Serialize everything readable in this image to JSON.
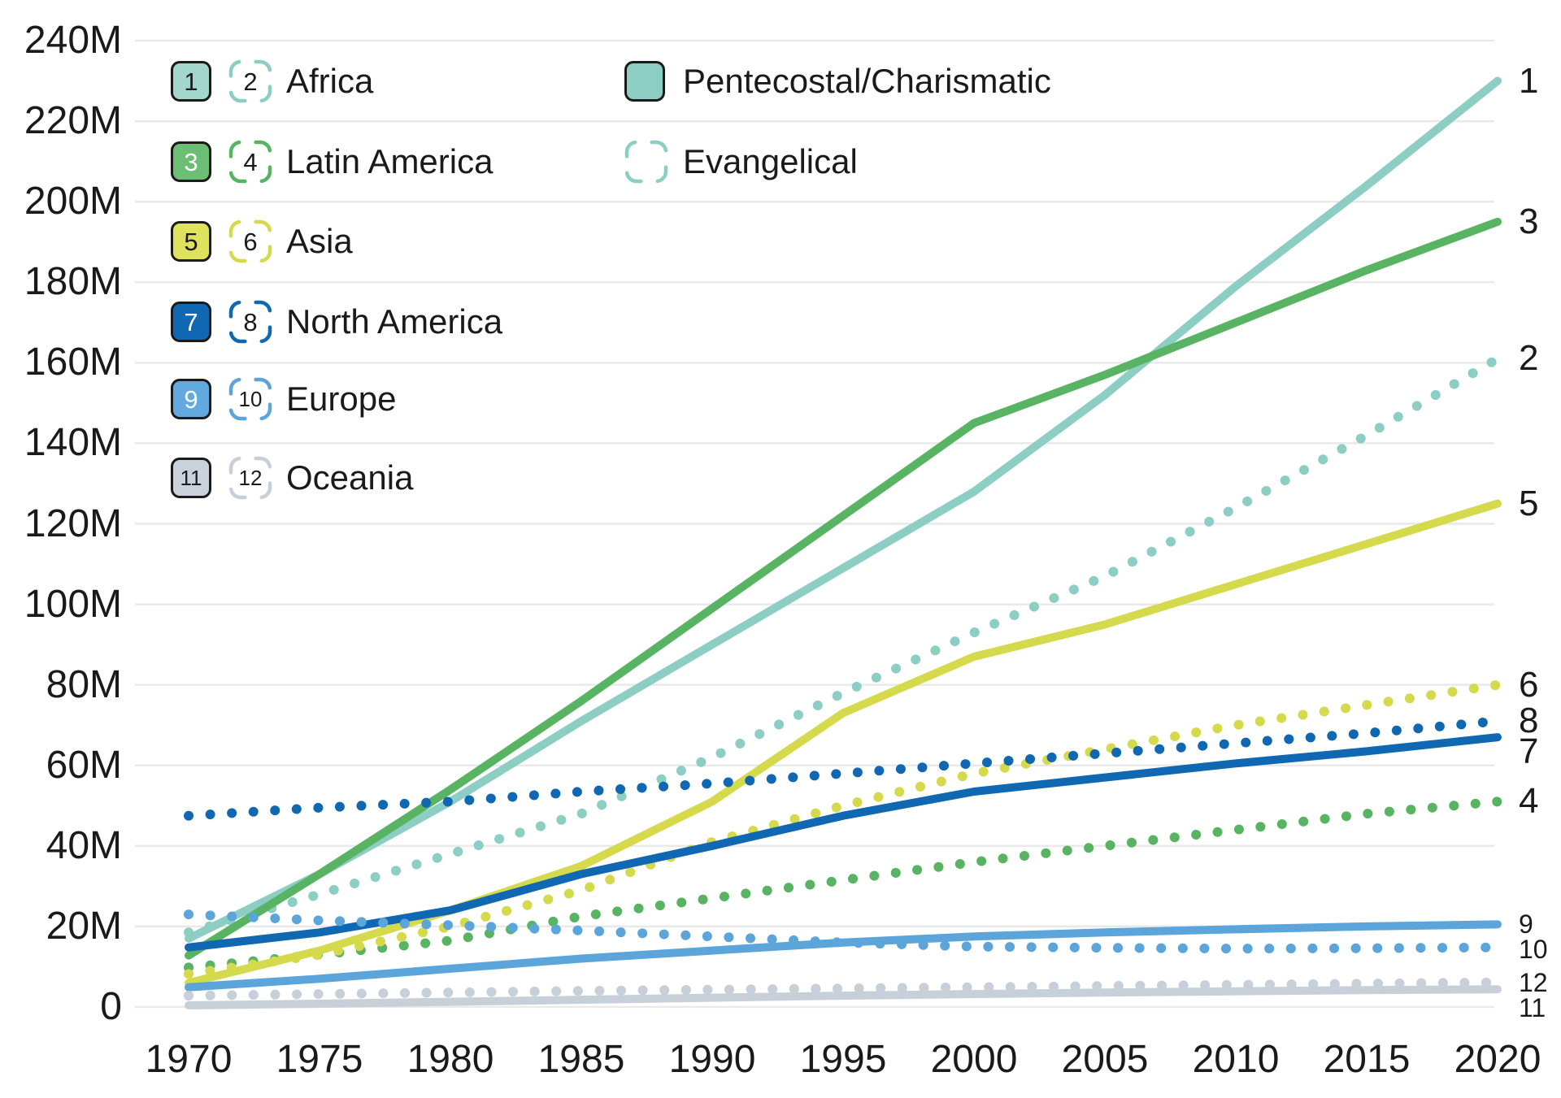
{
  "legend": {
    "regions": [
      {
        "solid_number": "1",
        "dashed_number": "2",
        "label": "Africa",
        "color": "#8DCEC4",
        "box_fill": "#A3D6CD",
        "solid_text_color": "#1a1a1a"
      },
      {
        "solid_number": "3",
        "dashed_number": "4",
        "label": "Latin America",
        "color": "#58B462",
        "box_fill": "#6CBE74",
        "solid_text_color": "#ffffff"
      },
      {
        "solid_number": "5",
        "dashed_number": "6",
        "label": "Asia",
        "color": "#D5DA4D",
        "box_fill": "#DFE25C",
        "solid_text_color": "#1a1a1a"
      },
      {
        "solid_number": "7",
        "dashed_number": "8",
        "label": "North America",
        "color": "#1168B2",
        "box_fill": "#1168B2",
        "solid_text_color": "#ffffff"
      },
      {
        "solid_number": "9",
        "dashed_number": "10",
        "label": "Europe",
        "color": "#5CA5DB",
        "box_fill": "#61A9DE",
        "solid_text_color": "#ffffff"
      },
      {
        "solid_number": "11",
        "dashed_number": "12",
        "label": "Oceania",
        "color": "#C7D0D9",
        "box_fill": "#C9D2DB",
        "solid_text_color": "#1a1a1a"
      }
    ],
    "traditions": [
      {
        "label": "Pentecostal/Charismatic",
        "swatch": "solid",
        "color": "#8DCEC4"
      },
      {
        "label": "Evangelical",
        "swatch": "dashed",
        "color": "#8DCEC4"
      }
    ]
  },
  "axes": {
    "y_ticks": [
      {
        "label": "240M",
        "value": 240
      },
      {
        "label": "220M",
        "value": 220
      },
      {
        "label": "200M",
        "value": 200
      },
      {
        "label": "180M",
        "value": 180
      },
      {
        "label": "160M",
        "value": 160
      },
      {
        "label": "140M",
        "value": 140
      },
      {
        "label": "120M",
        "value": 120
      },
      {
        "label": "100M",
        "value": 100
      },
      {
        "label": "80M",
        "value": 80
      },
      {
        "label": "60M",
        "value": 60
      },
      {
        "label": "40M",
        "value": 40
      },
      {
        "label": "20M",
        "value": 20
      },
      {
        "label": "0",
        "value": 0
      }
    ],
    "x_ticks": [
      "1970",
      "1975",
      "1980",
      "1985",
      "1990",
      "1995",
      "2000",
      "2005",
      "2010",
      "2015",
      "2020"
    ]
  },
  "chart_data": {
    "type": "line",
    "x": [
      1970,
      1975,
      1980,
      1985,
      1990,
      1995,
      2000,
      2005,
      2010,
      2015,
      2020
    ],
    "xlim": [
      1970,
      2020
    ],
    "ylim": [
      0,
      240
    ],
    "y_unit": "millions of people",
    "grid": true,
    "legend_position": "top-left",
    "series": [
      {
        "line": "1",
        "region": "Africa",
        "tradition": "Pentecostal/Charismatic",
        "style": "solid",
        "color": "#8DCEC4",
        "values": [
          17,
          33,
          51,
          71,
          90,
          109,
          128,
          152,
          179,
          204,
          230
        ]
      },
      {
        "line": "2",
        "region": "Africa",
        "tradition": "Evangelical",
        "style": "dotted",
        "color": "#8DCEC4",
        "values": [
          18.5,
          28,
          38,
          48,
          62,
          78,
          93,
          107,
          124,
          142,
          161
        ]
      },
      {
        "line": "3",
        "region": "Latin America",
        "tradition": "Pentecostal/Charismatic",
        "style": "solid",
        "color": "#58B462",
        "values": [
          12.8,
          33,
          54,
          76,
          99,
          122,
          145,
          157,
          170,
          183,
          195
        ]
      },
      {
        "line": "4",
        "region": "Latin America",
        "tradition": "Evangelical",
        "style": "dotted",
        "color": "#58B462",
        "values": [
          9.8,
          13,
          16.5,
          22.5,
          27,
          31.5,
          36,
          40,
          44,
          48,
          51
        ]
      },
      {
        "line": "5",
        "region": "Asia",
        "tradition": "Pentecostal/Charismatic",
        "style": "solid",
        "color": "#D5DA4D",
        "values": [
          6,
          14,
          24,
          35,
          51,
          73,
          87,
          95,
          105,
          115,
          125
        ]
      },
      {
        "line": "6",
        "region": "Asia",
        "tradition": "Evangelical",
        "style": "dotted",
        "color": "#D5DA4D",
        "values": [
          8.2,
          13,
          20,
          29,
          41,
          50,
          58,
          64,
          70,
          75,
          80
        ]
      },
      {
        "line": "7",
        "region": "North America",
        "tradition": "Pentecostal/Charismatic",
        "style": "solid",
        "color": "#1168B2",
        "values": [
          14.8,
          18.5,
          24,
          33,
          40,
          47.5,
          53.5,
          57,
          60.5,
          63.5,
          67
        ]
      },
      {
        "line": "8",
        "region": "North America",
        "tradition": "Evangelical",
        "style": "dotted",
        "color": "#1168B2",
        "values": [
          47.5,
          49.5,
          51,
          53.5,
          55.5,
          58,
          60.5,
          63,
          65.5,
          68,
          71
        ]
      },
      {
        "line": "9",
        "region": "Europe",
        "tradition": "Pentecostal/Charismatic",
        "style": "solid",
        "color": "#5CA5DB",
        "values": [
          4.9,
          7,
          9.5,
          12,
          14,
          16,
          17.5,
          18.5,
          19.3,
          20,
          20.5
        ]
      },
      {
        "line": "10",
        "region": "Europe",
        "tradition": "Evangelical",
        "style": "dotted",
        "color": "#5CA5DB",
        "values": [
          23,
          21.5,
          20.3,
          19,
          17.5,
          16,
          15,
          14.7,
          14.5,
          14.6,
          14.8
        ]
      },
      {
        "line": "11",
        "region": "Oceania",
        "tradition": "Pentecostal/Charismatic",
        "style": "solid",
        "color": "#C7D0D9",
        "values": [
          0.4,
          0.8,
          1.3,
          1.8,
          2.3,
          2.8,
          3.2,
          3.6,
          3.9,
          4.2,
          4.4
        ]
      },
      {
        "line": "12",
        "region": "Oceania",
        "tradition": "Evangelical",
        "style": "dotted",
        "color": "#C7D0D9",
        "values": [
          2.8,
          3.2,
          3.6,
          4.0,
          4.3,
          4.6,
          4.9,
          5.2,
          5.5,
          5.8,
          6.1
        ]
      }
    ],
    "colors": {
      "grid": "#E9E9E9",
      "text": "#1a1a1a",
      "africa": "#8DCEC4",
      "latin_america": "#58B462",
      "asia": "#D5DA4D",
      "north_america": "#1168B2",
      "europe": "#5CA5DB",
      "oceania": "#C7D0D9"
    }
  }
}
